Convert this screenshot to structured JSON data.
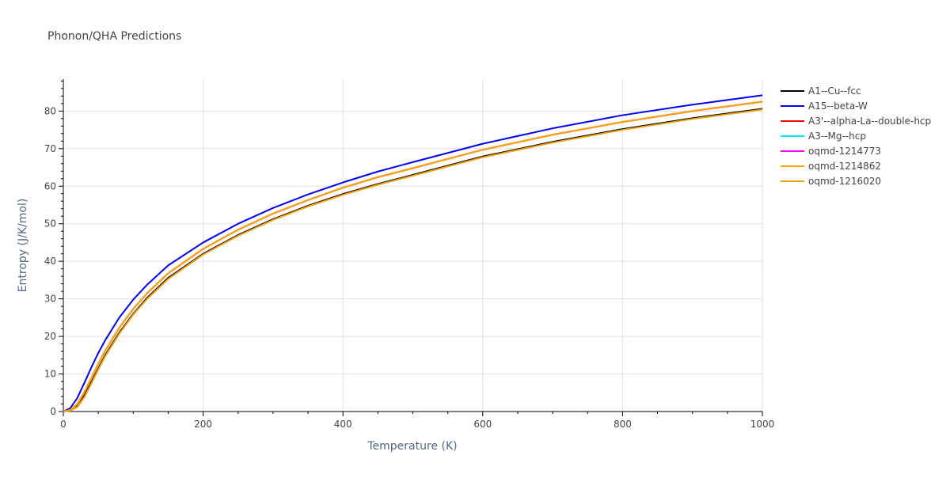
{
  "chart_data": {
    "type": "line",
    "title": "Phonon/QHA Predictions",
    "xlabel": "Temperature (K)",
    "ylabel": "Entropy (J/K/mol)",
    "xlim": [
      0,
      1000
    ],
    "ylim": [
      0,
      88.5
    ],
    "xticks": [
      0,
      200,
      400,
      600,
      800,
      1000
    ],
    "yticks": [
      0,
      10,
      20,
      30,
      40,
      50,
      60,
      70,
      80
    ],
    "grid": true,
    "legend_position": "right",
    "x": [
      0,
      10,
      20,
      30,
      40,
      50,
      60,
      80,
      100,
      120,
      150,
      200,
      250,
      300,
      350,
      400,
      450,
      500,
      600,
      700,
      800,
      900,
      1000
    ],
    "series": [
      {
        "name": "A1--Cu--fcc",
        "color": "#000000",
        "values": [
          0,
          0.3,
          1.5,
          4.2,
          7.8,
          11.5,
          15.0,
          21.0,
          26.0,
          30.3,
          35.6,
          42.0,
          47.0,
          51.2,
          54.8,
          57.9,
          60.6,
          63.0,
          67.9,
          71.8,
          75.2,
          78.1,
          80.6
        ]
      },
      {
        "name": "A15--beta-W",
        "color": "#0000ee",
        "values": [
          0,
          0.9,
          3.6,
          7.6,
          11.7,
          15.6,
          19.0,
          25.0,
          29.8,
          33.8,
          38.9,
          45.0,
          50.0,
          54.2,
          57.8,
          61.0,
          63.9,
          66.4,
          71.3,
          75.4,
          78.9,
          81.7,
          84.2
        ]
      },
      {
        "name": "A3'--alpha-La--double-hcp",
        "color": "#ff0000",
        "values": [
          0,
          0.4,
          2.0,
          5.1,
          8.9,
          12.7,
          16.2,
          22.3,
          27.3,
          31.5,
          36.8,
          43.3,
          48.4,
          52.7,
          56.3,
          59.6,
          62.4,
          64.8,
          69.7,
          73.7,
          77.1,
          80.0,
          82.5
        ]
      },
      {
        "name": "A3--Mg--hcp",
        "color": "#00e5ee",
        "values": [
          0,
          0.4,
          2.0,
          5.1,
          8.9,
          12.7,
          16.2,
          22.3,
          27.3,
          31.5,
          36.8,
          43.3,
          48.4,
          52.7,
          56.3,
          59.6,
          62.4,
          64.8,
          69.7,
          73.7,
          77.1,
          80.0,
          82.5
        ]
      },
      {
        "name": "oqmd-1214773",
        "color": "#ff00ff",
        "values": [
          0,
          0.4,
          2.0,
          5.1,
          8.9,
          12.7,
          16.2,
          22.3,
          27.3,
          31.5,
          36.8,
          43.3,
          48.4,
          52.7,
          56.3,
          59.6,
          62.4,
          64.8,
          69.7,
          73.7,
          77.1,
          80.0,
          82.5
        ]
      },
      {
        "name": "oqmd-1214862",
        "color": "#ffa500",
        "values": [
          0,
          0.4,
          2.0,
          5.1,
          8.9,
          12.7,
          16.2,
          22.3,
          27.3,
          31.5,
          36.8,
          43.3,
          48.4,
          52.7,
          56.3,
          59.6,
          62.4,
          64.8,
          69.7,
          73.7,
          77.1,
          80.0,
          82.5
        ]
      },
      {
        "name": "oqmd-1216020",
        "color": "#f0a010",
        "values": [
          0,
          0.2,
          1.2,
          3.8,
          7.4,
          11.2,
          14.7,
          20.7,
          25.8,
          30.0,
          35.3,
          41.8,
          46.8,
          51.0,
          54.6,
          57.7,
          60.4,
          62.8,
          67.7,
          71.6,
          75.0,
          77.9,
          80.4
        ]
      }
    ]
  }
}
